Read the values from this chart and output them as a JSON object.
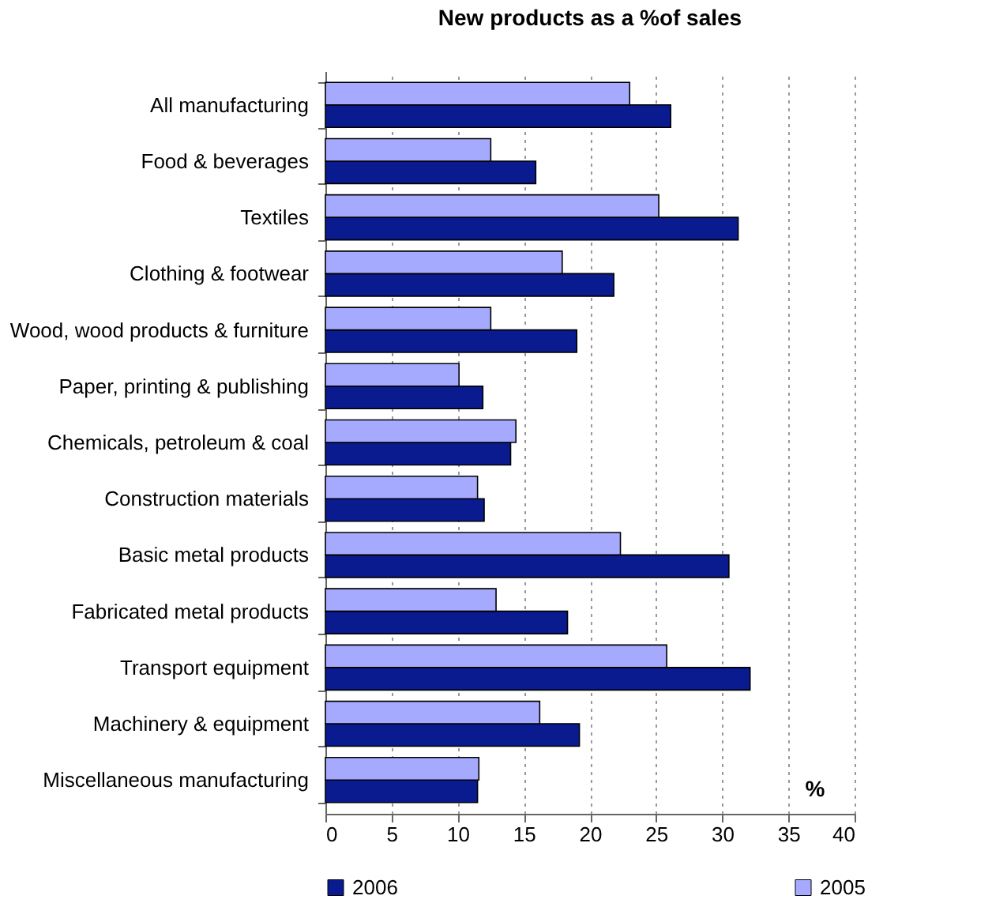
{
  "chart_data": {
    "type": "bar",
    "orientation": "horizontal",
    "title": "New products as a %of sales",
    "categories": [
      "All manufacturing",
      "Food & beverages",
      "Textiles",
      "Clothing & footwear",
      "Wood, wood products & furniture",
      "Paper, printing & publishing",
      "Chemicals, petroleum & coal",
      "Construction materials",
      "Basic metal products",
      "Fabricated metal products",
      "Transport equipment",
      "Machinery & equipment",
      "Miscellaneous manufacturing"
    ],
    "series": [
      {
        "name": "2006",
        "color": "#0a1a8f",
        "values": [
          26.1,
          15.9,
          31.2,
          21.8,
          19.0,
          11.9,
          14.0,
          12.0,
          30.5,
          18.3,
          32.1,
          19.2,
          11.5
        ]
      },
      {
        "name": "2005",
        "color": "#a6aaff",
        "values": [
          23.0,
          12.5,
          25.2,
          17.9,
          12.5,
          10.1,
          14.4,
          11.5,
          22.3,
          12.9,
          25.8,
          16.2,
          11.6
        ]
      }
    ],
    "xlim": [
      0,
      40
    ],
    "xticks": [
      0,
      5,
      10,
      15,
      20,
      25,
      30,
      35,
      40
    ],
    "grid": "x",
    "legend": "bottom",
    "annotations": [
      "%"
    ]
  }
}
